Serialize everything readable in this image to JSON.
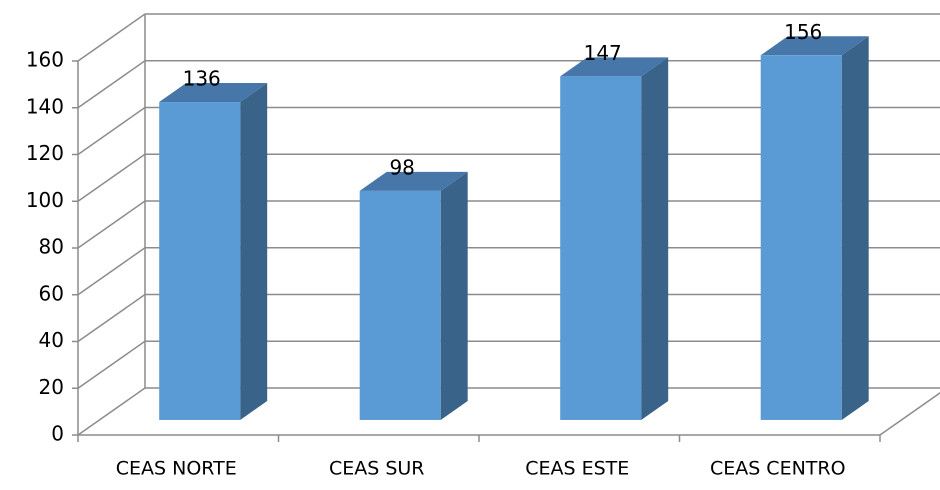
{
  "chart_data": {
    "type": "bar",
    "categories": [
      "CEAS NORTE",
      "CEAS SUR",
      "CEAS ESTE",
      "CEAS CENTRO"
    ],
    "values": [
      136,
      98,
      147,
      156
    ],
    "color": "#5b9bd5",
    "ylim": [
      0,
      160
    ],
    "yticks": [
      0,
      20,
      40,
      60,
      80,
      100,
      120,
      140,
      160
    ],
    "grid": true
  }
}
